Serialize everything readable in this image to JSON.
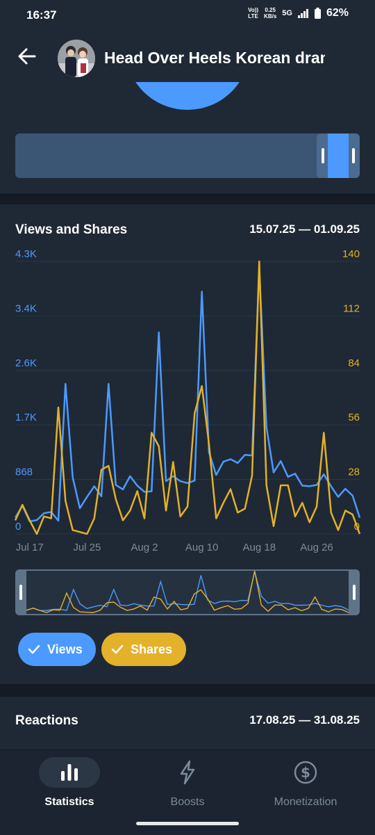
{
  "status_bar": {
    "time": "16:37",
    "volte_top": "Vo))",
    "volte_bottom": "LTE",
    "speed_top": "0.25",
    "speed_bottom": "KB/s",
    "network": "5G",
    "battery": "62%"
  },
  "header": {
    "title": "Head Over Heels Korean drama"
  },
  "views_shares": {
    "title": "Views and Shares",
    "range": "15.07.25 — 01.09.25",
    "chip_views": "Views",
    "chip_shares": "Shares"
  },
  "reactions": {
    "title": "Reactions",
    "range": "17.08.25 — 31.08.25"
  },
  "bottom_nav": {
    "statistics": "Statistics",
    "boosts": "Boosts",
    "monetization": "Monetization"
  },
  "colors": {
    "views": "#4c9aff",
    "shares": "#e3b12a",
    "background": "#1f2935"
  },
  "chart_data": {
    "type": "line",
    "x_tick_labels": [
      "Jul 17",
      "Jul 25",
      "Aug 2",
      "Aug 10",
      "Aug 18",
      "Aug 26"
    ],
    "x_tick_index": [
      2,
      10,
      18,
      26,
      34,
      42
    ],
    "y_left_tick_labels": [
      "0",
      "868",
      "1.7K",
      "2.6K",
      "3.4K",
      "4.3K"
    ],
    "y_right_tick_labels": [
      "0",
      "28",
      "56",
      "84",
      "112",
      "140"
    ],
    "y_left_range": [
      0,
      4340
    ],
    "y_right_range": [
      0,
      140
    ],
    "grid": true,
    "series": [
      {
        "name": "Views",
        "axis": "left",
        "values": [
          260,
          450,
          200,
          220,
          330,
          350,
          210,
          2390,
          900,
          410,
          590,
          760,
          600,
          2390,
          780,
          710,
          920,
          770,
          670,
          680,
          3210,
          840,
          920,
          840,
          810,
          850,
          3860,
          1300,
          940,
          1150,
          1190,
          1130,
          1260,
          1250,
          4240,
          1700,
          980,
          1160,
          910,
          960,
          770,
          760,
          780,
          950,
          760,
          590,
          720,
          610,
          260
        ]
      },
      {
        "name": "Shares",
        "axis": "right",
        "values": [
          7,
          15,
          7,
          0,
          9,
          8,
          65,
          17,
          2,
          1,
          0,
          8,
          33,
          35,
          18,
          7,
          12,
          22,
          8,
          52,
          45,
          12,
          37,
          9,
          14,
          62,
          76,
          46,
          8,
          16,
          23,
          11,
          13,
          30,
          140,
          25,
          4,
          25,
          25,
          9,
          16,
          6,
          14,
          52,
          11,
          2,
          12,
          10,
          0
        ]
      }
    ]
  }
}
